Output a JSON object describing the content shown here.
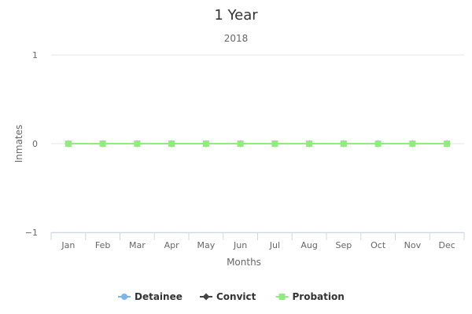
{
  "chart_data": {
    "type": "line",
    "title": "1 Year",
    "subtitle": "2018",
    "xlabel": "Months",
    "ylabel": "Inmates",
    "categories": [
      "Jan",
      "Feb",
      "Mar",
      "Apr",
      "May",
      "Jun",
      "Jul",
      "Aug",
      "Sep",
      "Oct",
      "Nov",
      "Dec"
    ],
    "ylim": [
      -1,
      1
    ],
    "yticks": [
      {
        "value": 1,
        "label": "1"
      },
      {
        "value": 0,
        "label": "0"
      },
      {
        "value": -1,
        "label": "−1"
      }
    ],
    "grid": true,
    "legend_position": "bottom",
    "series": [
      {
        "name": "Detainee",
        "color": "#7cb5ec",
        "marker": "circle",
        "values": [
          0,
          0,
          0,
          0,
          0,
          0,
          0,
          0,
          0,
          0,
          0,
          0
        ]
      },
      {
        "name": "Convict",
        "color": "#434348",
        "marker": "diamond",
        "values": [
          0,
          0,
          0,
          0,
          0,
          0,
          0,
          0,
          0,
          0,
          0,
          0
        ]
      },
      {
        "name": "Probation",
        "color": "#90ed7d",
        "marker": "square",
        "values": [
          0,
          0,
          0,
          0,
          0,
          0,
          0,
          0,
          0,
          0,
          0,
          0
        ]
      }
    ]
  }
}
